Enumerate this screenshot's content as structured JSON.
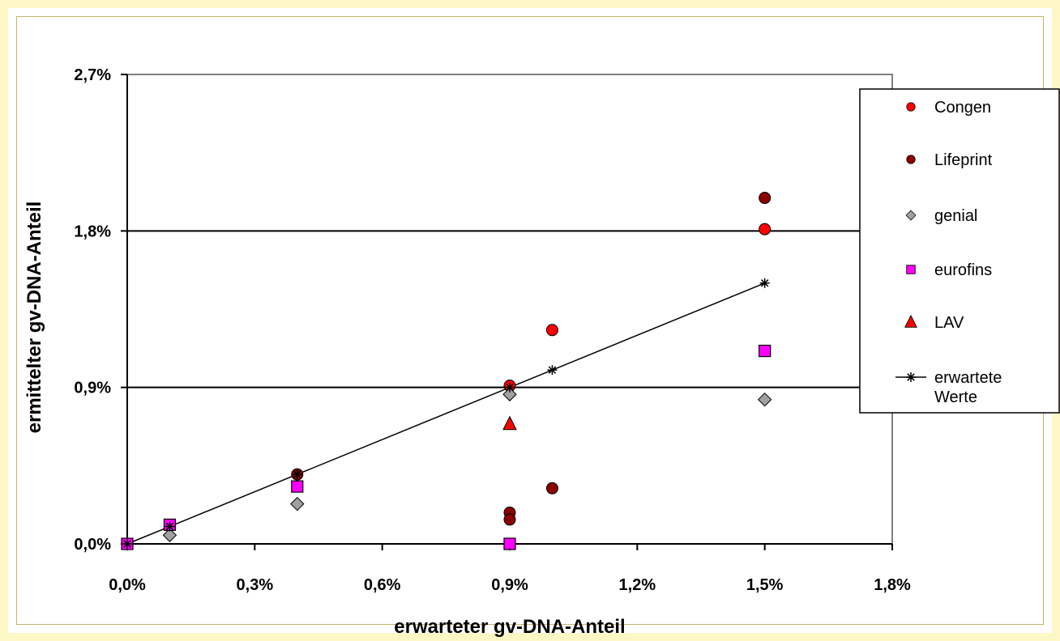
{
  "chart_data": {
    "type": "scatter",
    "xlabel": "erwarteter gv-DNA-Anteil",
    "ylabel": "ermittelter gv-DNA-Anteil",
    "xlim": [
      0,
      1.8
    ],
    "ylim": [
      0,
      2.7
    ],
    "x_ticks": [
      "0,0%",
      "0,3%",
      "0,6%",
      "0,9%",
      "1,2%",
      "1,5%",
      "1,8%"
    ],
    "y_ticks": [
      "0,0%",
      "0,9%",
      "1,8%",
      "2,7%"
    ],
    "x_tick_values": [
      0,
      0.3,
      0.6,
      0.9,
      1.2,
      1.5,
      1.8
    ],
    "y_tick_values": [
      0,
      0.9,
      1.8,
      2.7
    ],
    "gridlines_y": [
      0.9,
      1.8
    ],
    "legend_position": "right",
    "series": [
      {
        "name": "Congen",
        "marker": "circle",
        "color": "#ff0000",
        "points": [
          [
            0.9,
            0.91
          ],
          [
            1.0,
            1.23
          ],
          [
            1.5,
            1.81
          ]
        ]
      },
      {
        "name": "Lifeprint",
        "marker": "circle",
        "color": "#8b0000",
        "points": [
          [
            0.4,
            0.4
          ],
          [
            0.9,
            0.18
          ],
          [
            0.9,
            0.14
          ],
          [
            1.0,
            0.32
          ],
          [
            1.5,
            1.99
          ]
        ]
      },
      {
        "name": "genial",
        "marker": "diamond",
        "color": "#a0a0a0",
        "points": [
          [
            0.1,
            0.05
          ],
          [
            0.4,
            0.23
          ],
          [
            0.9,
            0.86
          ],
          [
            1.5,
            0.83
          ]
        ]
      },
      {
        "name": "eurofins",
        "marker": "square",
        "color": "#ff00ff",
        "points": [
          [
            0.0,
            0.0
          ],
          [
            0.1,
            0.11
          ],
          [
            0.4,
            0.33
          ],
          [
            0.9,
            0.0
          ],
          [
            1.5,
            1.11
          ]
        ]
      },
      {
        "name": "LAV",
        "marker": "triangle",
        "color": "#ff0000",
        "points": [
          [
            0.9,
            0.69
          ]
        ]
      },
      {
        "name": "erwartete Werte",
        "marker": "star-line",
        "color": "#000000",
        "points": [
          [
            0.0,
            0.0
          ],
          [
            0.1,
            0.1
          ],
          [
            0.4,
            0.4
          ],
          [
            0.9,
            0.9
          ],
          [
            1.0,
            1.0
          ],
          [
            1.5,
            1.5
          ]
        ]
      }
    ]
  }
}
